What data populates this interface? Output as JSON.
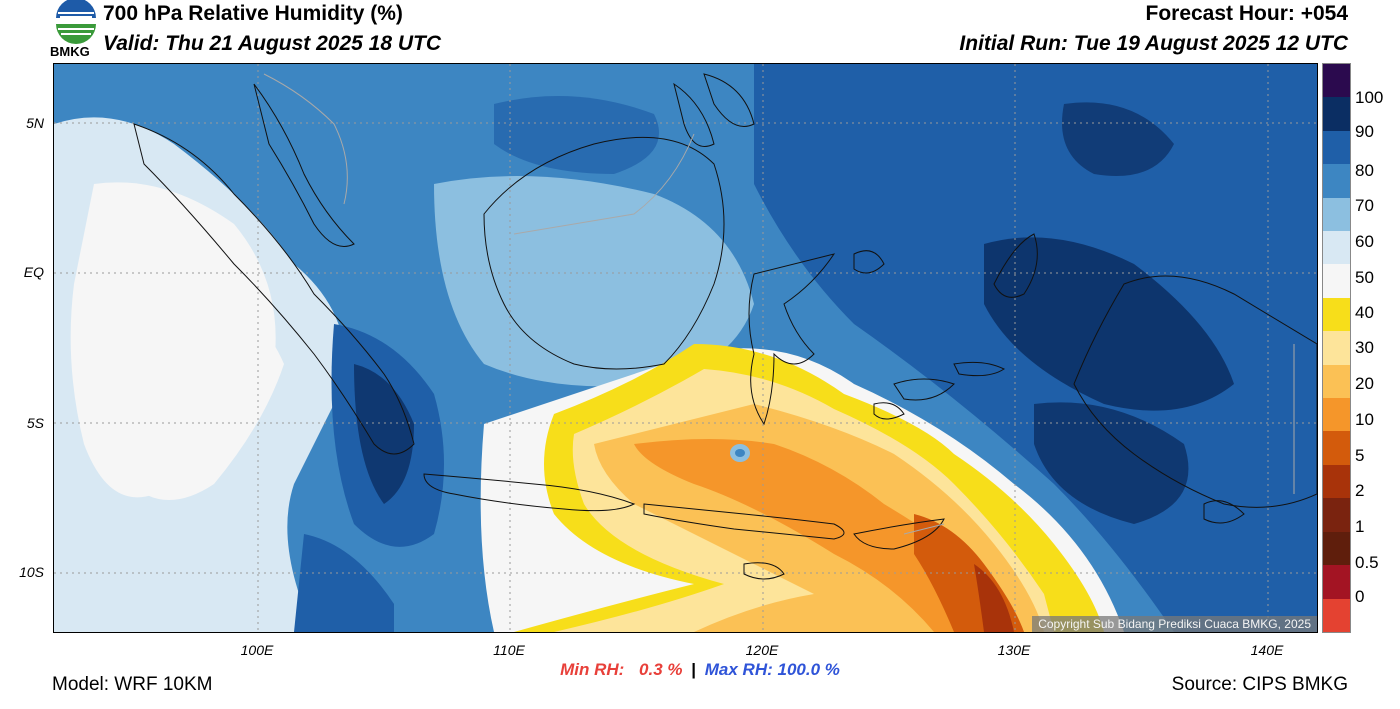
{
  "header": {
    "title": "700 hPa Relative Humidity (%)",
    "valid": "Valid: Thu 21 August 2025 18 UTC",
    "forecast_hour": "Forecast Hour: +054",
    "initial_run": "Initial Run: Tue 19 August 2025 12 UTC",
    "logo_text": "BMKG"
  },
  "map": {
    "lat_labels": [
      "5N",
      "EQ",
      "5S",
      "10S"
    ],
    "lon_labels": [
      "100E",
      "110E",
      "120E",
      "130E",
      "140E"
    ],
    "copyright": "Copyright Sub Bidang Prediksi Cuaca BMKG, 2025"
  },
  "legend": {
    "levels": [
      "100",
      "90",
      "80",
      "70",
      "60",
      "50",
      "40",
      "30",
      "20",
      "10",
      "5",
      "2",
      "1",
      "0.5",
      "0"
    ],
    "colors": [
      "#2b0a4e",
      "#0b2e63",
      "#1f5fa8",
      "#3d86c2",
      "#8cbfe0",
      "#d8e8f3",
      "#f6f6f6",
      "#f7de1a",
      "#fde49a",
      "#fbc155",
      "#f5962a",
      "#d35b0c",
      "#a8330a",
      "#7a230f",
      "#5f1e0c",
      "#a31423",
      "#e44231"
    ]
  },
  "stats": {
    "min_label": "Min RH:",
    "min_value": "0.3 %",
    "separator": "|",
    "max_label": "Max RH:",
    "max_value": "100.0 %"
  },
  "footer": {
    "model": "Model: WRF 10KM",
    "source": "Source: CIPS BMKG"
  }
}
